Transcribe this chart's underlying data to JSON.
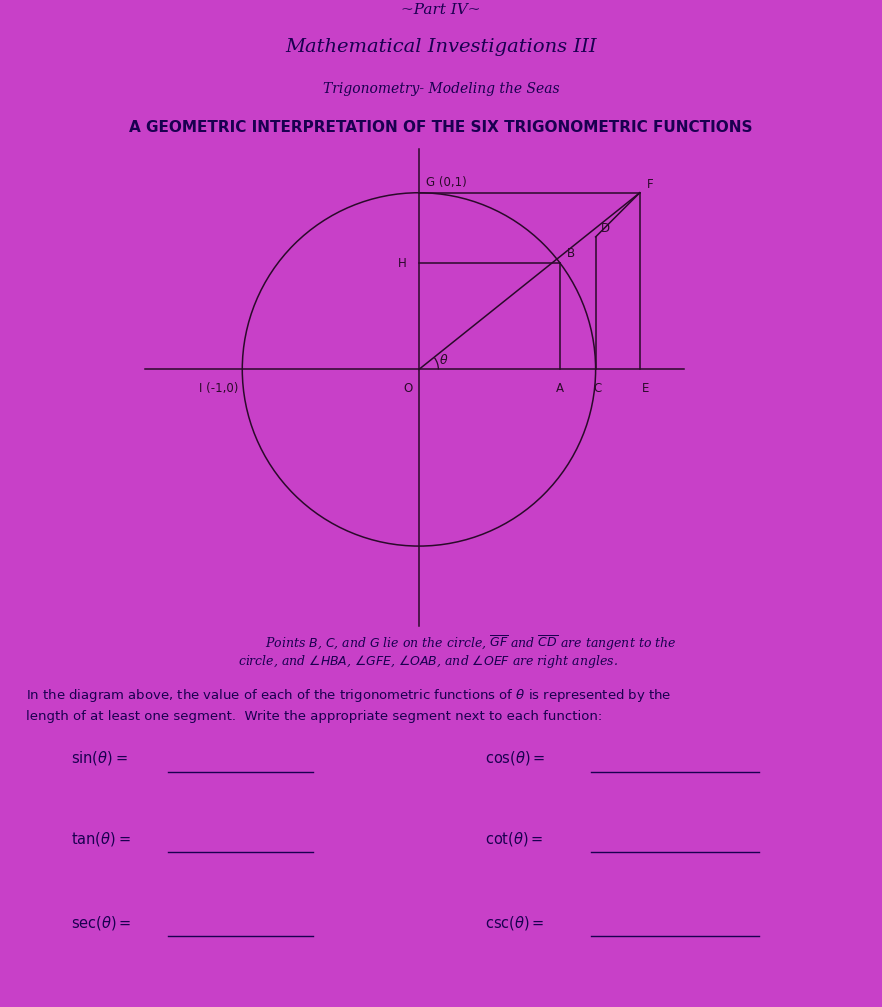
{
  "bg_color": "#C840C8",
  "title_line1": "~Part IV~",
  "title_line2": "Mathematical Investigations III",
  "title_line3": "Trigonometry- Modeling the Seas",
  "title_line4": "A GEOMETRIC INTERPRETATION OF THE SIX TRIGONOMETRIC FUNCTIONS",
  "circle_color": "#2a0a2a",
  "line_color": "#2a0a2a",
  "text_color": "#1a0050",
  "theta": 0.6435,
  "fs_title1": 11,
  "fs_title2": 14,
  "fs_title3": 10,
  "fs_title4": 11
}
